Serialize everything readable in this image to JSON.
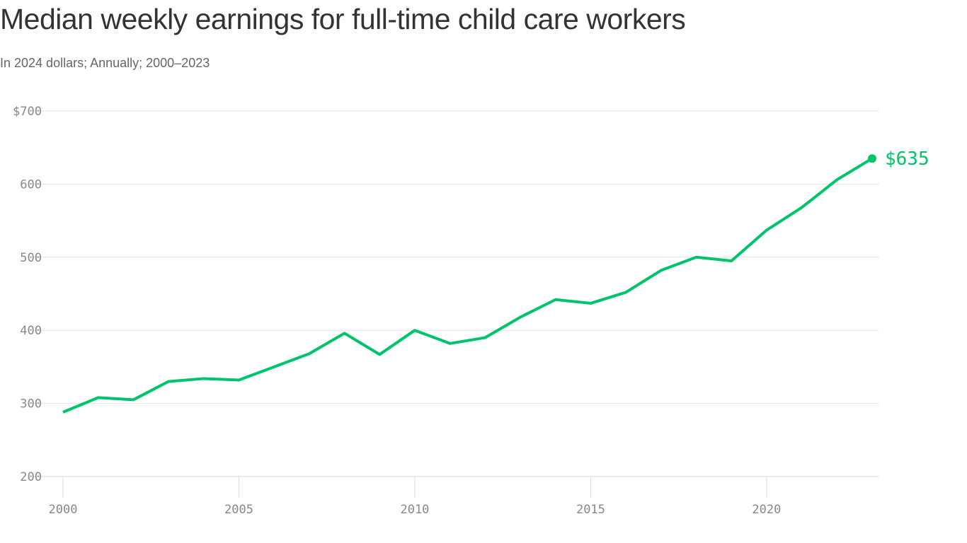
{
  "chart_data": {
    "type": "line",
    "title": "Median weekly earnings for full-time child care workers",
    "subtitle": "In 2024 dollars; Annually; 2000–2023",
    "xlabel": "",
    "ylabel": "",
    "x": [
      2000,
      2001,
      2002,
      2003,
      2004,
      2005,
      2006,
      2007,
      2008,
      2009,
      2010,
      2011,
      2012,
      2013,
      2014,
      2015,
      2016,
      2017,
      2018,
      2019,
      2020,
      2021,
      2022,
      2023
    ],
    "series": [
      {
        "values": [
          288,
          308,
          305,
          330,
          334,
          332,
          350,
          368,
          396,
          367,
          400,
          382,
          390,
          418,
          442,
          437,
          452,
          482,
          500,
          495,
          537,
          568,
          606,
          635
        ],
        "color": "#00c46a"
      }
    ],
    "ylim": [
      200,
      700
    ],
    "xlim": [
      2000,
      2023
    ],
    "yticks": [
      {
        "value": 700,
        "label": "$700"
      },
      {
        "value": 600,
        "label": "600"
      },
      {
        "value": 500,
        "label": "500"
      },
      {
        "value": 400,
        "label": "400"
      },
      {
        "value": 300,
        "label": "300"
      },
      {
        "value": 200,
        "label": "200"
      }
    ],
    "xticks": [
      {
        "value": 2000,
        "label": "2000"
      },
      {
        "value": 2005,
        "label": "2005"
      },
      {
        "value": 2010,
        "label": "2010"
      },
      {
        "value": 2015,
        "label": "2015"
      },
      {
        "value": 2020,
        "label": "2020"
      }
    ],
    "annotation": {
      "label": "$635",
      "x": 2023,
      "y": 635
    },
    "grid": true,
    "legend": "none"
  }
}
